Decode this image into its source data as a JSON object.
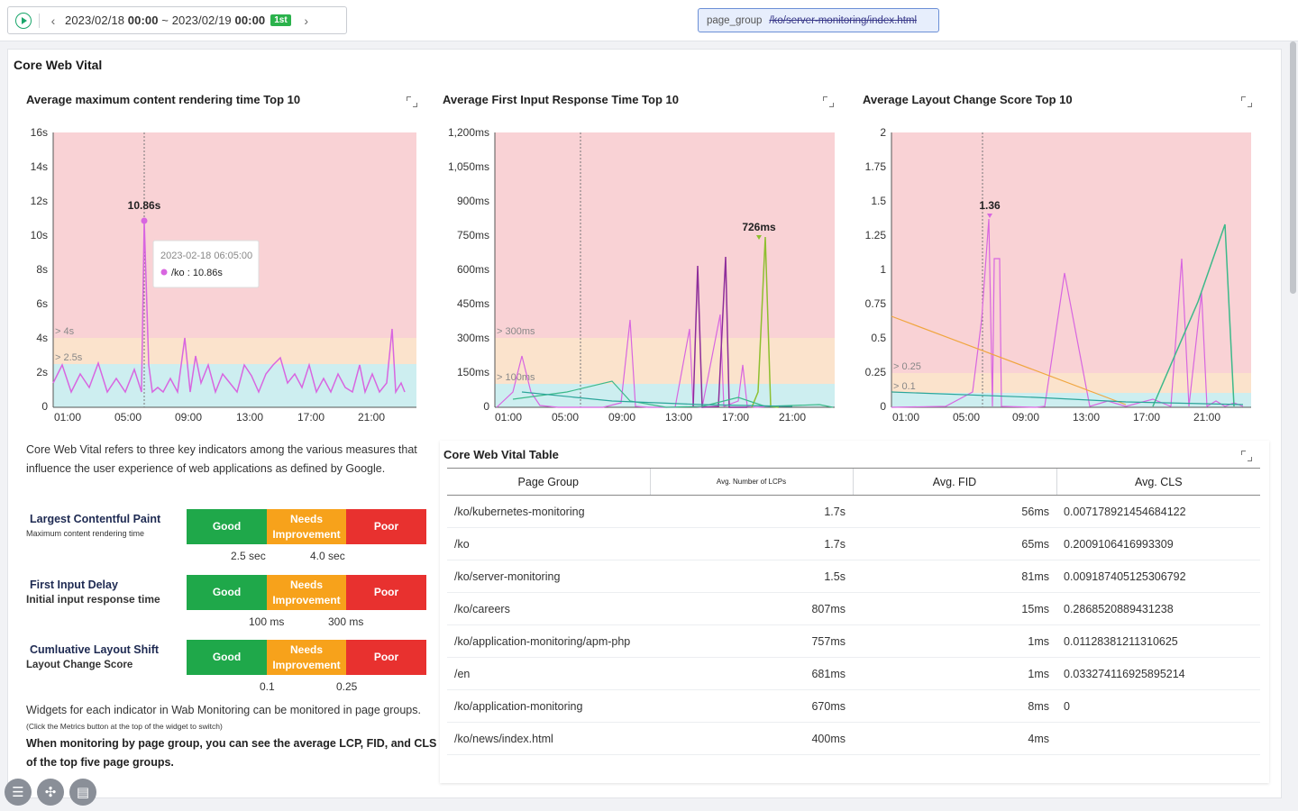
{
  "topbar": {
    "range_start_date": "2023/02/18",
    "range_start_time": "00:00",
    "range_sep": "~",
    "range_end_date": "2023/02/19",
    "range_end_time": "00:00",
    "tz_badge": "1st",
    "filter_key": "page_group",
    "filter_value": "/ko/server-monitoring/index.html"
  },
  "card": {
    "title": "Core Web Vital"
  },
  "charts": {
    "lcp": {
      "title": "Average maximum content rendering time Top 10",
      "peak_label": "10.86s",
      "tooltip_time": "2023-02-18 06:05:00",
      "tooltip_value": "/ko : 10.86s",
      "band_poor": "> 4s",
      "band_needs": "> 2.5s",
      "y_ticks": [
        "16s",
        "14s",
        "12s",
        "10s",
        "8s",
        "6s",
        "4s",
        "2s",
        "0"
      ],
      "x_ticks": [
        "01:00",
        "05:00",
        "09:00",
        "13:00",
        "17:00",
        "21:00"
      ]
    },
    "fid": {
      "title": "Average First Input Response Time Top 10",
      "peak_label": "726ms",
      "band_poor": "> 300ms",
      "band_needs": "> 100ms",
      "y_ticks": [
        "1,200ms",
        "1,050ms",
        "900ms",
        "750ms",
        "600ms",
        "450ms",
        "300ms",
        "150ms",
        "0"
      ],
      "x_ticks": [
        "01:00",
        "05:00",
        "09:00",
        "13:00",
        "17:00",
        "21:00"
      ]
    },
    "cls": {
      "title": "Average Layout Change Score Top 10",
      "peak_label": "1.36",
      "band_poor": "> 0.25",
      "band_needs": "> 0.1",
      "y_ticks": [
        "2",
        "1.75",
        "1.5",
        "1.25",
        "1",
        "0.75",
        "0.5",
        "0.25",
        "0"
      ],
      "x_ticks": [
        "01:00",
        "05:00",
        "09:00",
        "13:00",
        "17:00",
        "21:00"
      ]
    }
  },
  "chart_data": [
    {
      "type": "line",
      "title": "Average maximum content rendering time Top 10",
      "ylim": [
        0,
        16
      ],
      "x": [
        "01:00",
        "05:00",
        "09:00",
        "13:00",
        "17:00",
        "21:00"
      ],
      "series": [
        {
          "name": "/ko",
          "peak": 10.86
        }
      ]
    },
    {
      "type": "line",
      "title": "Average First Input Response Time Top 10",
      "ylim": [
        0,
        1200
      ],
      "x": [
        "01:00",
        "05:00",
        "09:00",
        "13:00",
        "17:00",
        "21:00"
      ],
      "series": [
        {
          "peak": 726
        }
      ]
    },
    {
      "type": "line",
      "title": "Average Layout Change Score Top 10",
      "ylim": [
        0,
        2
      ],
      "x": [
        "01:00",
        "05:00",
        "09:00",
        "13:00",
        "17:00",
        "21:00"
      ],
      "series": [
        {
          "peak": 1.36
        }
      ]
    }
  ],
  "description": {
    "intro": "Core Web Vital refers to three key indicators among the various measures that influence the user experience of web applications as defined by Google.",
    "lcp_name": "Largest Contentful Paint",
    "lcp_sub": "Maximum content rendering time",
    "fid_name": "First Input Delay",
    "fid_sub": "Initial input response time",
    "cls_name": "Cumluative Layout Shift",
    "cls_sub": "Layout Change Score",
    "good": "Good",
    "needs": "Needs Improvement",
    "poor": "Poor",
    "lcp_t1": "2.5 sec",
    "lcp_t2": "4.0 sec",
    "fid_t1": "100 ms",
    "fid_t2": "300 ms",
    "cls_t1": "0.1",
    "cls_t2": "0.25",
    "foot1": "Widgets for each indicator in Wab Monitoring can be monitored in page groups.",
    "foot2": "(Click the Metrics button at the top of the widget to switch)",
    "foot3": "When monitoring by page group, you can see the average LCP, FID, and CLS of the top five page groups."
  },
  "table": {
    "title": "Core Web Vital Table",
    "headers": [
      "Page Group",
      "Avg. Number of LCPs",
      "Avg. FID",
      "Avg. CLS"
    ],
    "rows": [
      [
        "/ko/kubernetes-monitoring",
        "1.7s",
        "56ms",
        "0.007178921454684122"
      ],
      [
        "/ko",
        "1.7s",
        "65ms",
        "0.2009106416993309"
      ],
      [
        "/ko/server-monitoring",
        "1.5s",
        "81ms",
        "0.009187405125306792"
      ],
      [
        "/ko/careers",
        "807ms",
        "15ms",
        "0.2868520889431238"
      ],
      [
        "/ko/application-monitoring/apm-php",
        "757ms",
        "1ms",
        "0.01128381211310625"
      ],
      [
        "/en",
        "681ms",
        "1ms",
        "0.033274116925895214"
      ],
      [
        "/ko/application-monitoring",
        "670ms",
        "8ms",
        "0"
      ],
      [
        "/ko/news/index.html",
        "400ms",
        "4ms",
        ""
      ]
    ]
  },
  "fabs": {
    "menu": "☰",
    "collapse": "✣",
    "report": "▤"
  },
  "colors": {
    "poor_band": "#f9d2d5",
    "needs_band": "#fbe3cc",
    "good_band": "#cdeef0",
    "pink": "#d866e0",
    "green": "#3cb98a",
    "olive": "#8ebf2f",
    "orange": "#f0a640",
    "teal": "#2ba59a"
  }
}
